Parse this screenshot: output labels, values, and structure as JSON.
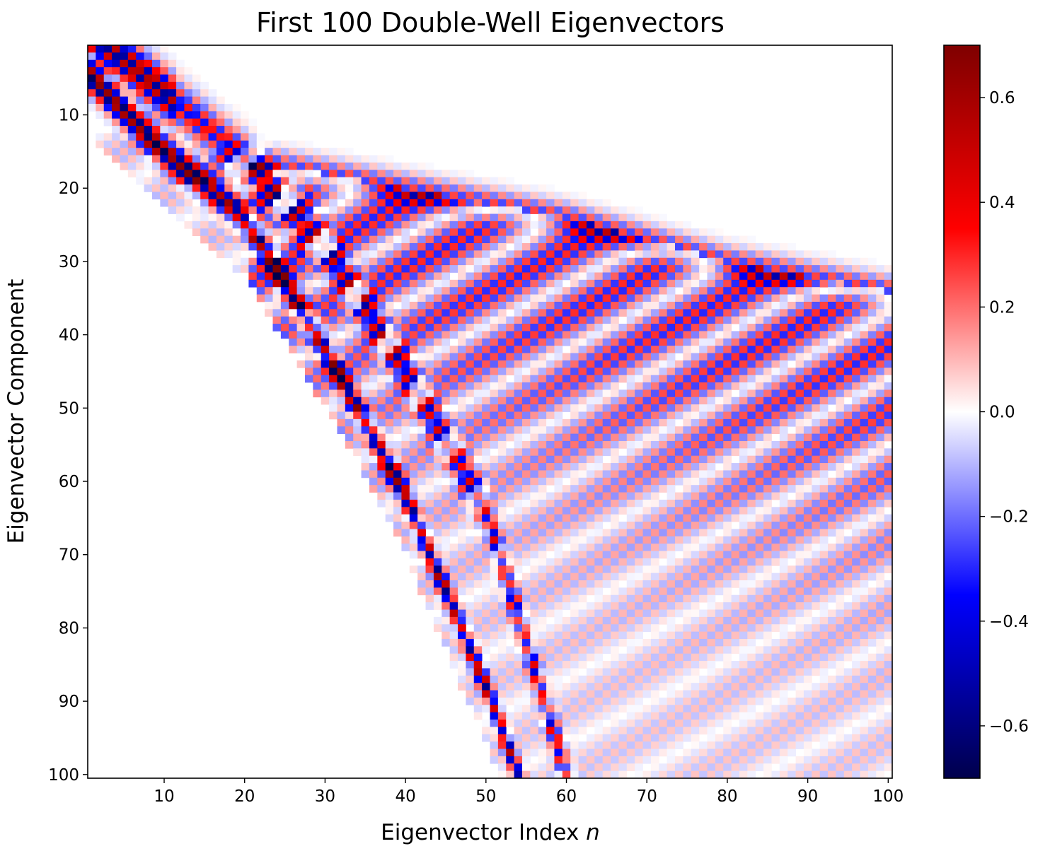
{
  "chart_data": {
    "type": "heatmap",
    "title": "First 100 Double-Well Eigenvectors",
    "xlabel": "Eigenvector Index",
    "xlabel_var": "n",
    "ylabel": "Eigenvector Component",
    "x_range": [
      1,
      100
    ],
    "y_range": [
      1,
      100
    ],
    "y_axis_inverted": true,
    "x_ticks": [
      10,
      20,
      30,
      40,
      50,
      60,
      70,
      80,
      90,
      100
    ],
    "y_ticks": [
      10,
      20,
      30,
      40,
      50,
      60,
      70,
      80,
      90,
      100
    ],
    "colormap": "seismic",
    "color_range": [
      -0.7,
      0.7
    ],
    "colorbar_ticks": [
      -0.6,
      -0.4,
      -0.2,
      0.0,
      0.2,
      0.4,
      0.6
    ],
    "colorbar_tick_labels": [
      "−0.6",
      "−0.4",
      "−0.2",
      "0.0",
      "0.2",
      "0.4",
      "0.6"
    ],
    "grid": false,
    "structure": {
      "description": "Checkerboard-signed eigenvector components; paired (nearly degenerate) modes concentrated in two bands that spread from top-left toward bottom-center, with higher modes delocalized over components 20-100.",
      "primary_band": [
        {
          "n": 1,
          "component": 5
        },
        {
          "n": 10,
          "component": 15
        },
        {
          "n": 20,
          "component": 24
        },
        {
          "n": 30,
          "component": 42
        },
        {
          "n": 40,
          "component": 62
        },
        {
          "n": 50,
          "component": 88
        },
        {
          "n": 54,
          "component": 100
        }
      ],
      "secondary_band": [
        {
          "n": 10,
          "component": 7
        },
        {
          "n": 20,
          "component": 16
        },
        {
          "n": 30,
          "component": 28
        },
        {
          "n": 40,
          "component": 45
        },
        {
          "n": 50,
          "component": 64
        },
        {
          "n": 60,
          "component": 100
        }
      ],
      "upper_band": [
        {
          "n": 20,
          "component": 16
        },
        {
          "n": 40,
          "component": 20
        },
        {
          "n": 60,
          "component": 24
        },
        {
          "n": 80,
          "component": 30
        },
        {
          "n": 100,
          "component": 34
        }
      ]
    }
  }
}
